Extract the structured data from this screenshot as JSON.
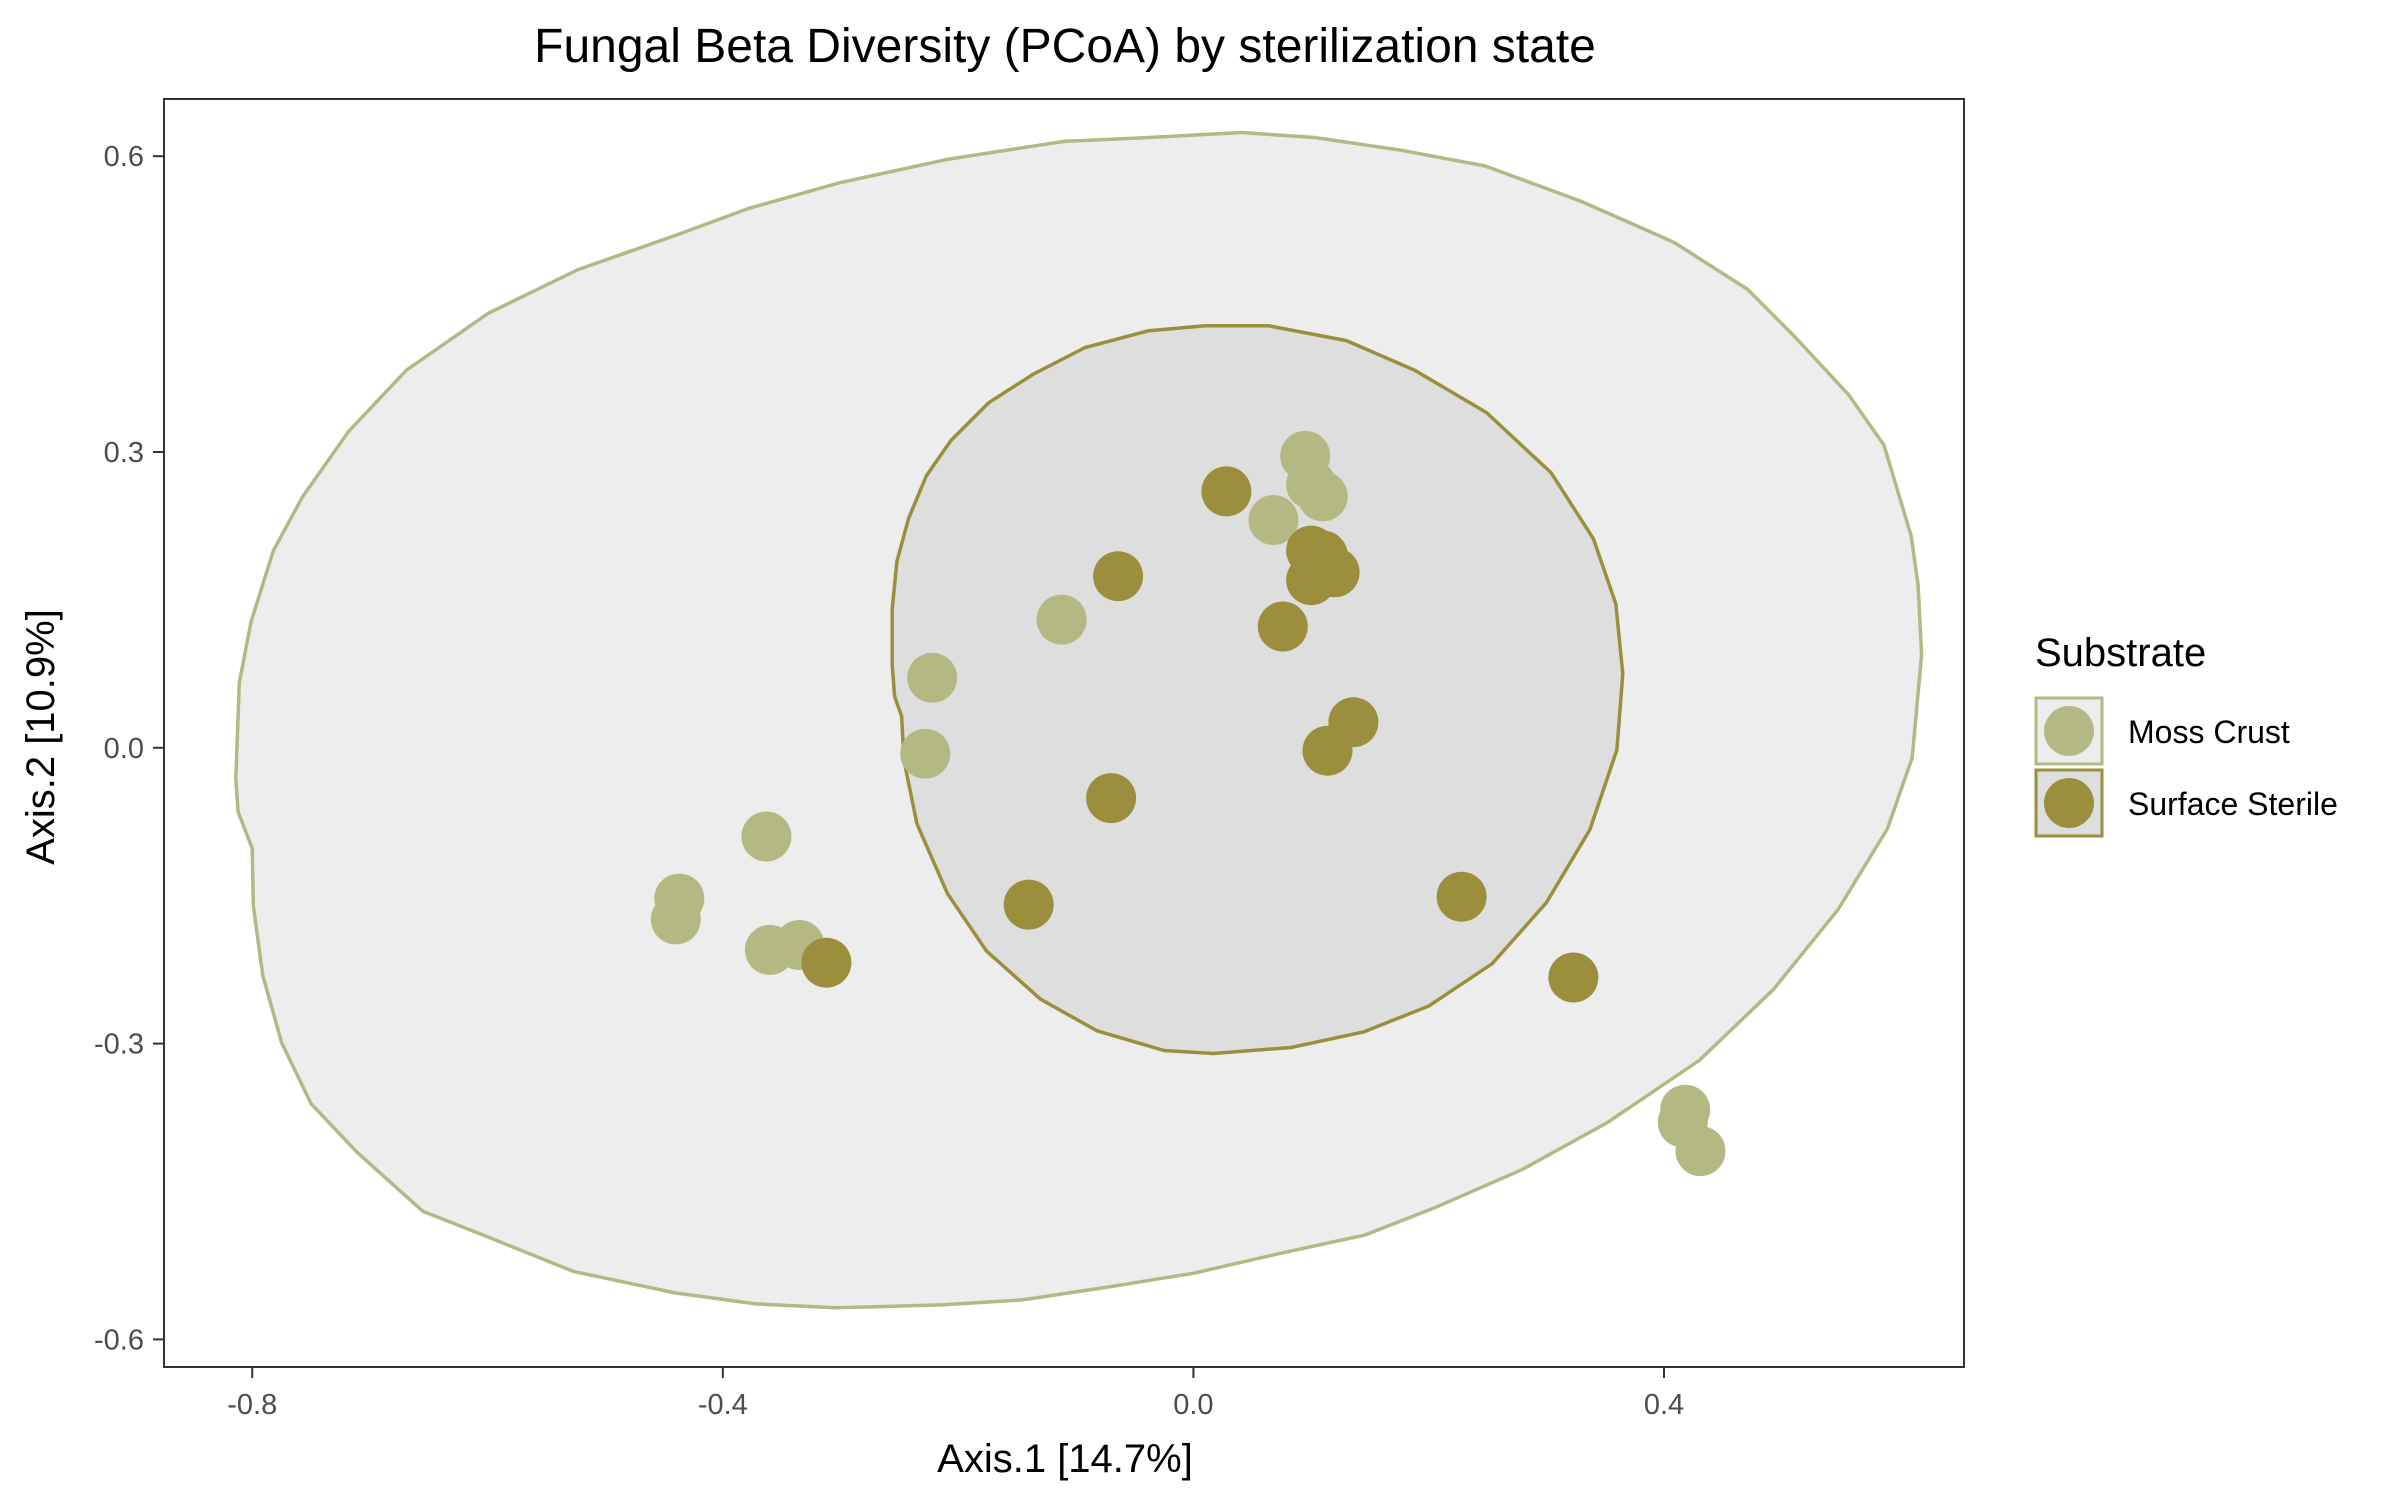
{
  "chart_data": {
    "type": "scatter",
    "title": "Fungal Beta Diversity (PCoA) by sterilization state",
    "xlabel": "Axis.1   [14.7%]",
    "ylabel": "Axis.2   [10.9%]",
    "xlim": [
      -0.875,
      0.655
    ],
    "ylim": [
      -0.628,
      0.658
    ],
    "x_ticks": [
      -0.8,
      -0.4,
      0.0,
      0.4
    ],
    "x_tick_labels": [
      "-0.8",
      "-0.4",
      "0.0",
      "0.4"
    ],
    "y_ticks": [
      -0.6,
      -0.3,
      0.0,
      0.3,
      0.6
    ],
    "y_tick_labels": [
      "-0.6",
      "-0.3",
      "0.0",
      "0.3",
      "0.6"
    ],
    "grid": false,
    "legend": {
      "title": "Substrate",
      "placement": "right"
    },
    "series": [
      {
        "name": "Moss Crust",
        "color": "#b4b983",
        "ellipse_fill": "#ededed",
        "x": [
          0.095,
          0.1,
          0.11,
          0.068,
          -0.112,
          -0.222,
          -0.228,
          -0.363,
          -0.437,
          -0.44,
          -0.36,
          -0.335,
          0.418,
          0.416,
          0.431
        ],
        "y": [
          0.296,
          0.267,
          0.255,
          0.231,
          0.13,
          0.071,
          -0.006,
          -0.09,
          -0.153,
          -0.174,
          -0.205,
          -0.2,
          -0.367,
          -0.38,
          -0.409
        ],
        "ellipse": [
          [
            -0.8,
            -0.102
          ],
          [
            -0.799,
            -0.161
          ],
          [
            -0.791,
            -0.231
          ],
          [
            -0.775,
            -0.299
          ],
          [
            -0.75,
            -0.361
          ],
          [
            -0.711,
            -0.41
          ],
          [
            -0.655,
            -0.47
          ],
          [
            -0.598,
            -0.497
          ],
          [
            -0.527,
            -0.531
          ],
          [
            -0.44,
            -0.553
          ],
          [
            -0.372,
            -0.564
          ],
          [
            -0.304,
            -0.568
          ],
          [
            -0.214,
            -0.565
          ],
          [
            -0.146,
            -0.56
          ],
          [
            -0.073,
            -0.547
          ],
          [
            0.0,
            -0.533
          ],
          [
            0.073,
            -0.513
          ],
          [
            0.146,
            -0.494
          ],
          [
            0.204,
            -0.467
          ],
          [
            0.279,
            -0.428
          ],
          [
            0.352,
            -0.38
          ],
          [
            0.43,
            -0.317
          ],
          [
            0.493,
            -0.245
          ],
          [
            0.548,
            -0.164
          ],
          [
            0.59,
            -0.082
          ],
          [
            0.611,
            -0.01
          ],
          [
            0.619,
            0.094
          ],
          [
            0.616,
            0.165
          ],
          [
            0.61,
            0.215
          ],
          [
            0.587,
            0.307
          ],
          [
            0.557,
            0.358
          ],
          [
            0.511,
            0.417
          ],
          [
            0.471,
            0.465
          ],
          [
            0.408,
            0.513
          ],
          [
            0.33,
            0.554
          ],
          [
            0.248,
            0.59
          ],
          [
            0.177,
            0.606
          ],
          [
            0.103,
            0.619
          ],
          [
            0.041,
            0.624
          ],
          [
            -0.038,
            0.619
          ],
          [
            -0.11,
            0.615
          ],
          [
            -0.208,
            0.597
          ],
          [
            -0.301,
            0.573
          ],
          [
            -0.378,
            0.547
          ],
          [
            -0.442,
            0.519
          ],
          [
            -0.523,
            0.485
          ],
          [
            -0.599,
            0.441
          ],
          [
            -0.669,
            0.383
          ],
          [
            -0.718,
            0.321
          ],
          [
            -0.757,
            0.255
          ],
          [
            -0.782,
            0.2
          ],
          [
            -0.801,
            0.128
          ],
          [
            -0.811,
            0.066
          ],
          [
            -0.814,
            -0.032
          ],
          [
            -0.812,
            -0.065
          ]
        ]
      },
      {
        "name": "Surface Sterile",
        "color": "#9b8f3e",
        "ellipse_fill": "#dedede",
        "x": [
          0.028,
          -0.064,
          0.1,
          0.11,
          0.12,
          0.1,
          0.076,
          0.136,
          0.114,
          -0.07,
          -0.14,
          0.228,
          0.323,
          -0.312
        ],
        "y": [
          0.26,
          0.174,
          0.2,
          0.195,
          0.178,
          0.17,
          0.123,
          0.026,
          -0.003,
          -0.051,
          -0.159,
          -0.151,
          -0.233,
          -0.218
        ],
        "ellipse": [
          [
            -0.248,
            0.032
          ],
          [
            -0.246,
            -0.013
          ],
          [
            -0.235,
            -0.077
          ],
          [
            -0.209,
            -0.148
          ],
          [
            -0.176,
            -0.206
          ],
          [
            -0.13,
            -0.255
          ],
          [
            -0.082,
            -0.287
          ],
          [
            -0.025,
            -0.307
          ],
          [
            0.017,
            -0.31
          ],
          [
            0.083,
            -0.304
          ],
          [
            0.145,
            -0.288
          ],
          [
            0.2,
            -0.262
          ],
          [
            0.254,
            -0.219
          ],
          [
            0.3,
            -0.157
          ],
          [
            0.337,
            -0.083
          ],
          [
            0.36,
            -0.002
          ],
          [
            0.365,
            0.075
          ],
          [
            0.359,
            0.146
          ],
          [
            0.34,
            0.212
          ],
          [
            0.304,
            0.279
          ],
          [
            0.249,
            0.34
          ],
          [
            0.188,
            0.383
          ],
          [
            0.13,
            0.413
          ],
          [
            0.064,
            0.428
          ],
          [
            0.01,
            0.428
          ],
          [
            -0.038,
            0.423
          ],
          [
            -0.092,
            0.406
          ],
          [
            -0.136,
            0.379
          ],
          [
            -0.174,
            0.35
          ],
          [
            -0.206,
            0.312
          ],
          [
            -0.227,
            0.276
          ],
          [
            -0.242,
            0.233
          ],
          [
            -0.252,
            0.189
          ],
          [
            -0.256,
            0.141
          ],
          [
            -0.256,
            0.084
          ],
          [
            -0.254,
            0.052
          ]
        ]
      }
    ]
  }
}
